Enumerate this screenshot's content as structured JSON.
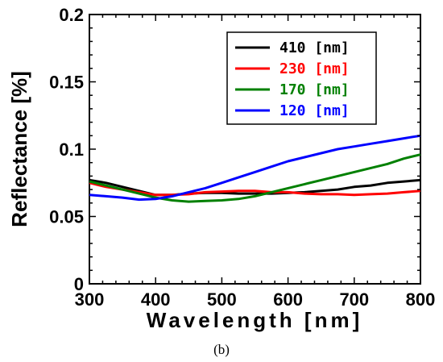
{
  "caption": "(b)",
  "chart_data": {
    "type": "line",
    "xlabel": "Wavelength [nm]",
    "ylabel": "Reflectance [%]",
    "xlim": [
      300,
      800
    ],
    "ylim": [
      0,
      0.2
    ],
    "xticks": [
      300,
      400,
      500,
      600,
      700,
      800
    ],
    "yticks": [
      0,
      0.05,
      0.1,
      0.15,
      0.2
    ],
    "xtick_labels": [
      "300",
      "400",
      "500",
      "600",
      "700",
      "800"
    ],
    "ytick_labels": [
      "0",
      "0.05",
      "0.1",
      "0.15",
      "0.2"
    ],
    "grid": false,
    "legend_position": "top-right",
    "series": [
      {
        "name": "410 [nm]",
        "color": "#000000",
        "x": [
          300,
          325,
          350,
          375,
          400,
          425,
          450,
          475,
          500,
          525,
          550,
          575,
          600,
          625,
          650,
          675,
          700,
          725,
          750,
          775,
          800
        ],
        "y": [
          0.077,
          0.075,
          0.072,
          0.069,
          0.066,
          0.066,
          0.067,
          0.0675,
          0.0675,
          0.067,
          0.067,
          0.067,
          0.0675,
          0.068,
          0.069,
          0.07,
          0.072,
          0.073,
          0.075,
          0.076,
          0.077
        ]
      },
      {
        "name": "230 [nm]",
        "color": "#ff0000",
        "x": [
          300,
          325,
          350,
          375,
          400,
          425,
          450,
          475,
          500,
          525,
          550,
          575,
          600,
          625,
          650,
          675,
          700,
          725,
          750,
          775,
          800
        ],
        "y": [
          0.075,
          0.072,
          0.07,
          0.068,
          0.066,
          0.066,
          0.0665,
          0.068,
          0.0685,
          0.069,
          0.069,
          0.068,
          0.068,
          0.067,
          0.0665,
          0.0665,
          0.066,
          0.0665,
          0.067,
          0.068,
          0.069
        ]
      },
      {
        "name": "170 [nm]",
        "color": "#008000",
        "x": [
          300,
          325,
          350,
          375,
          400,
          425,
          450,
          475,
          500,
          525,
          550,
          575,
          600,
          625,
          650,
          675,
          700,
          725,
          750,
          775,
          800
        ],
        "y": [
          0.076,
          0.073,
          0.07,
          0.067,
          0.064,
          0.062,
          0.061,
          0.0615,
          0.062,
          0.063,
          0.065,
          0.068,
          0.071,
          0.074,
          0.077,
          0.08,
          0.083,
          0.086,
          0.089,
          0.093,
          0.096
        ]
      },
      {
        "name": "120 [nm]",
        "color": "#0000ff",
        "x": [
          300,
          325,
          350,
          375,
          400,
          425,
          450,
          475,
          500,
          525,
          550,
          575,
          600,
          625,
          650,
          675,
          700,
          725,
          750,
          775,
          800
        ],
        "y": [
          0.066,
          0.065,
          0.064,
          0.0625,
          0.063,
          0.065,
          0.068,
          0.071,
          0.075,
          0.079,
          0.083,
          0.087,
          0.091,
          0.094,
          0.097,
          0.1,
          0.102,
          0.104,
          0.106,
          0.108,
          0.11
        ]
      }
    ]
  }
}
